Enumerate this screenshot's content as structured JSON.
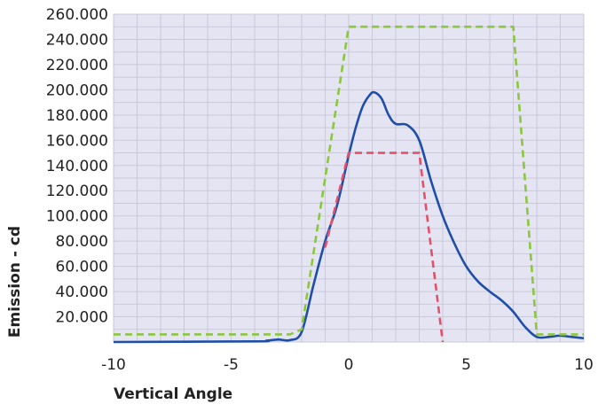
{
  "chart_data": {
    "type": "line",
    "title": "",
    "xlabel": "Vertical Angle",
    "ylabel": "Emission - cd",
    "xlim": [
      -10,
      10
    ],
    "ylim": [
      0,
      260
    ],
    "grid": true,
    "x_ticks": [
      -10,
      -5,
      0,
      5,
      10
    ],
    "x_tick_labels": [
      "-10",
      "-5",
      "0",
      "5",
      "10"
    ],
    "y_ticks": [
      20,
      40,
      60,
      80,
      100,
      120,
      140,
      160,
      180,
      200,
      220,
      240,
      260
    ],
    "y_tick_labels": [
      "20.000",
      "40.000",
      "60.000",
      "80.000",
      "100.000",
      "120.000",
      "140.000",
      "160.000",
      "180.000",
      "200.000",
      "220.000",
      "240.000",
      "260.000"
    ],
    "colors": {
      "plot_background": "#e4e4f2",
      "grid": "#c9c9d9"
    },
    "series": [
      {
        "style": "solid",
        "color": "#1f4ea8",
        "x": [
          -10,
          -4,
          -3.5,
          -3,
          -2.5,
          -2,
          -1.5,
          -1,
          -0.5,
          0,
          0.3,
          0.6,
          0.9,
          1.1,
          1.4,
          1.7,
          2,
          2.5,
          3,
          3.5,
          4,
          4.5,
          5,
          5.5,
          6,
          6.5,
          7,
          7.5,
          8,
          8.5,
          9,
          9.5,
          10
        ],
        "y": [
          0,
          0.5,
          1,
          2,
          1.5,
          8,
          45,
          80,
          108,
          148,
          170,
          187,
          196,
          198,
          193,
          180,
          173,
          172,
          160,
          128,
          100,
          78,
          60,
          48,
          40,
          33,
          24,
          12,
          4,
          4,
          5,
          4,
          3
        ]
      },
      {
        "style": "dashed",
        "color": "#8cc63f",
        "x": [
          -10,
          -2.5,
          -2,
          0,
          7,
          8,
          10
        ],
        "y": [
          6,
          6,
          10,
          250,
          250,
          6,
          6
        ]
      },
      {
        "style": "dashed",
        "color": "#e2516a",
        "x": [
          -1,
          0,
          3,
          4
        ],
        "y": [
          75,
          150,
          150,
          0
        ]
      }
    ]
  }
}
